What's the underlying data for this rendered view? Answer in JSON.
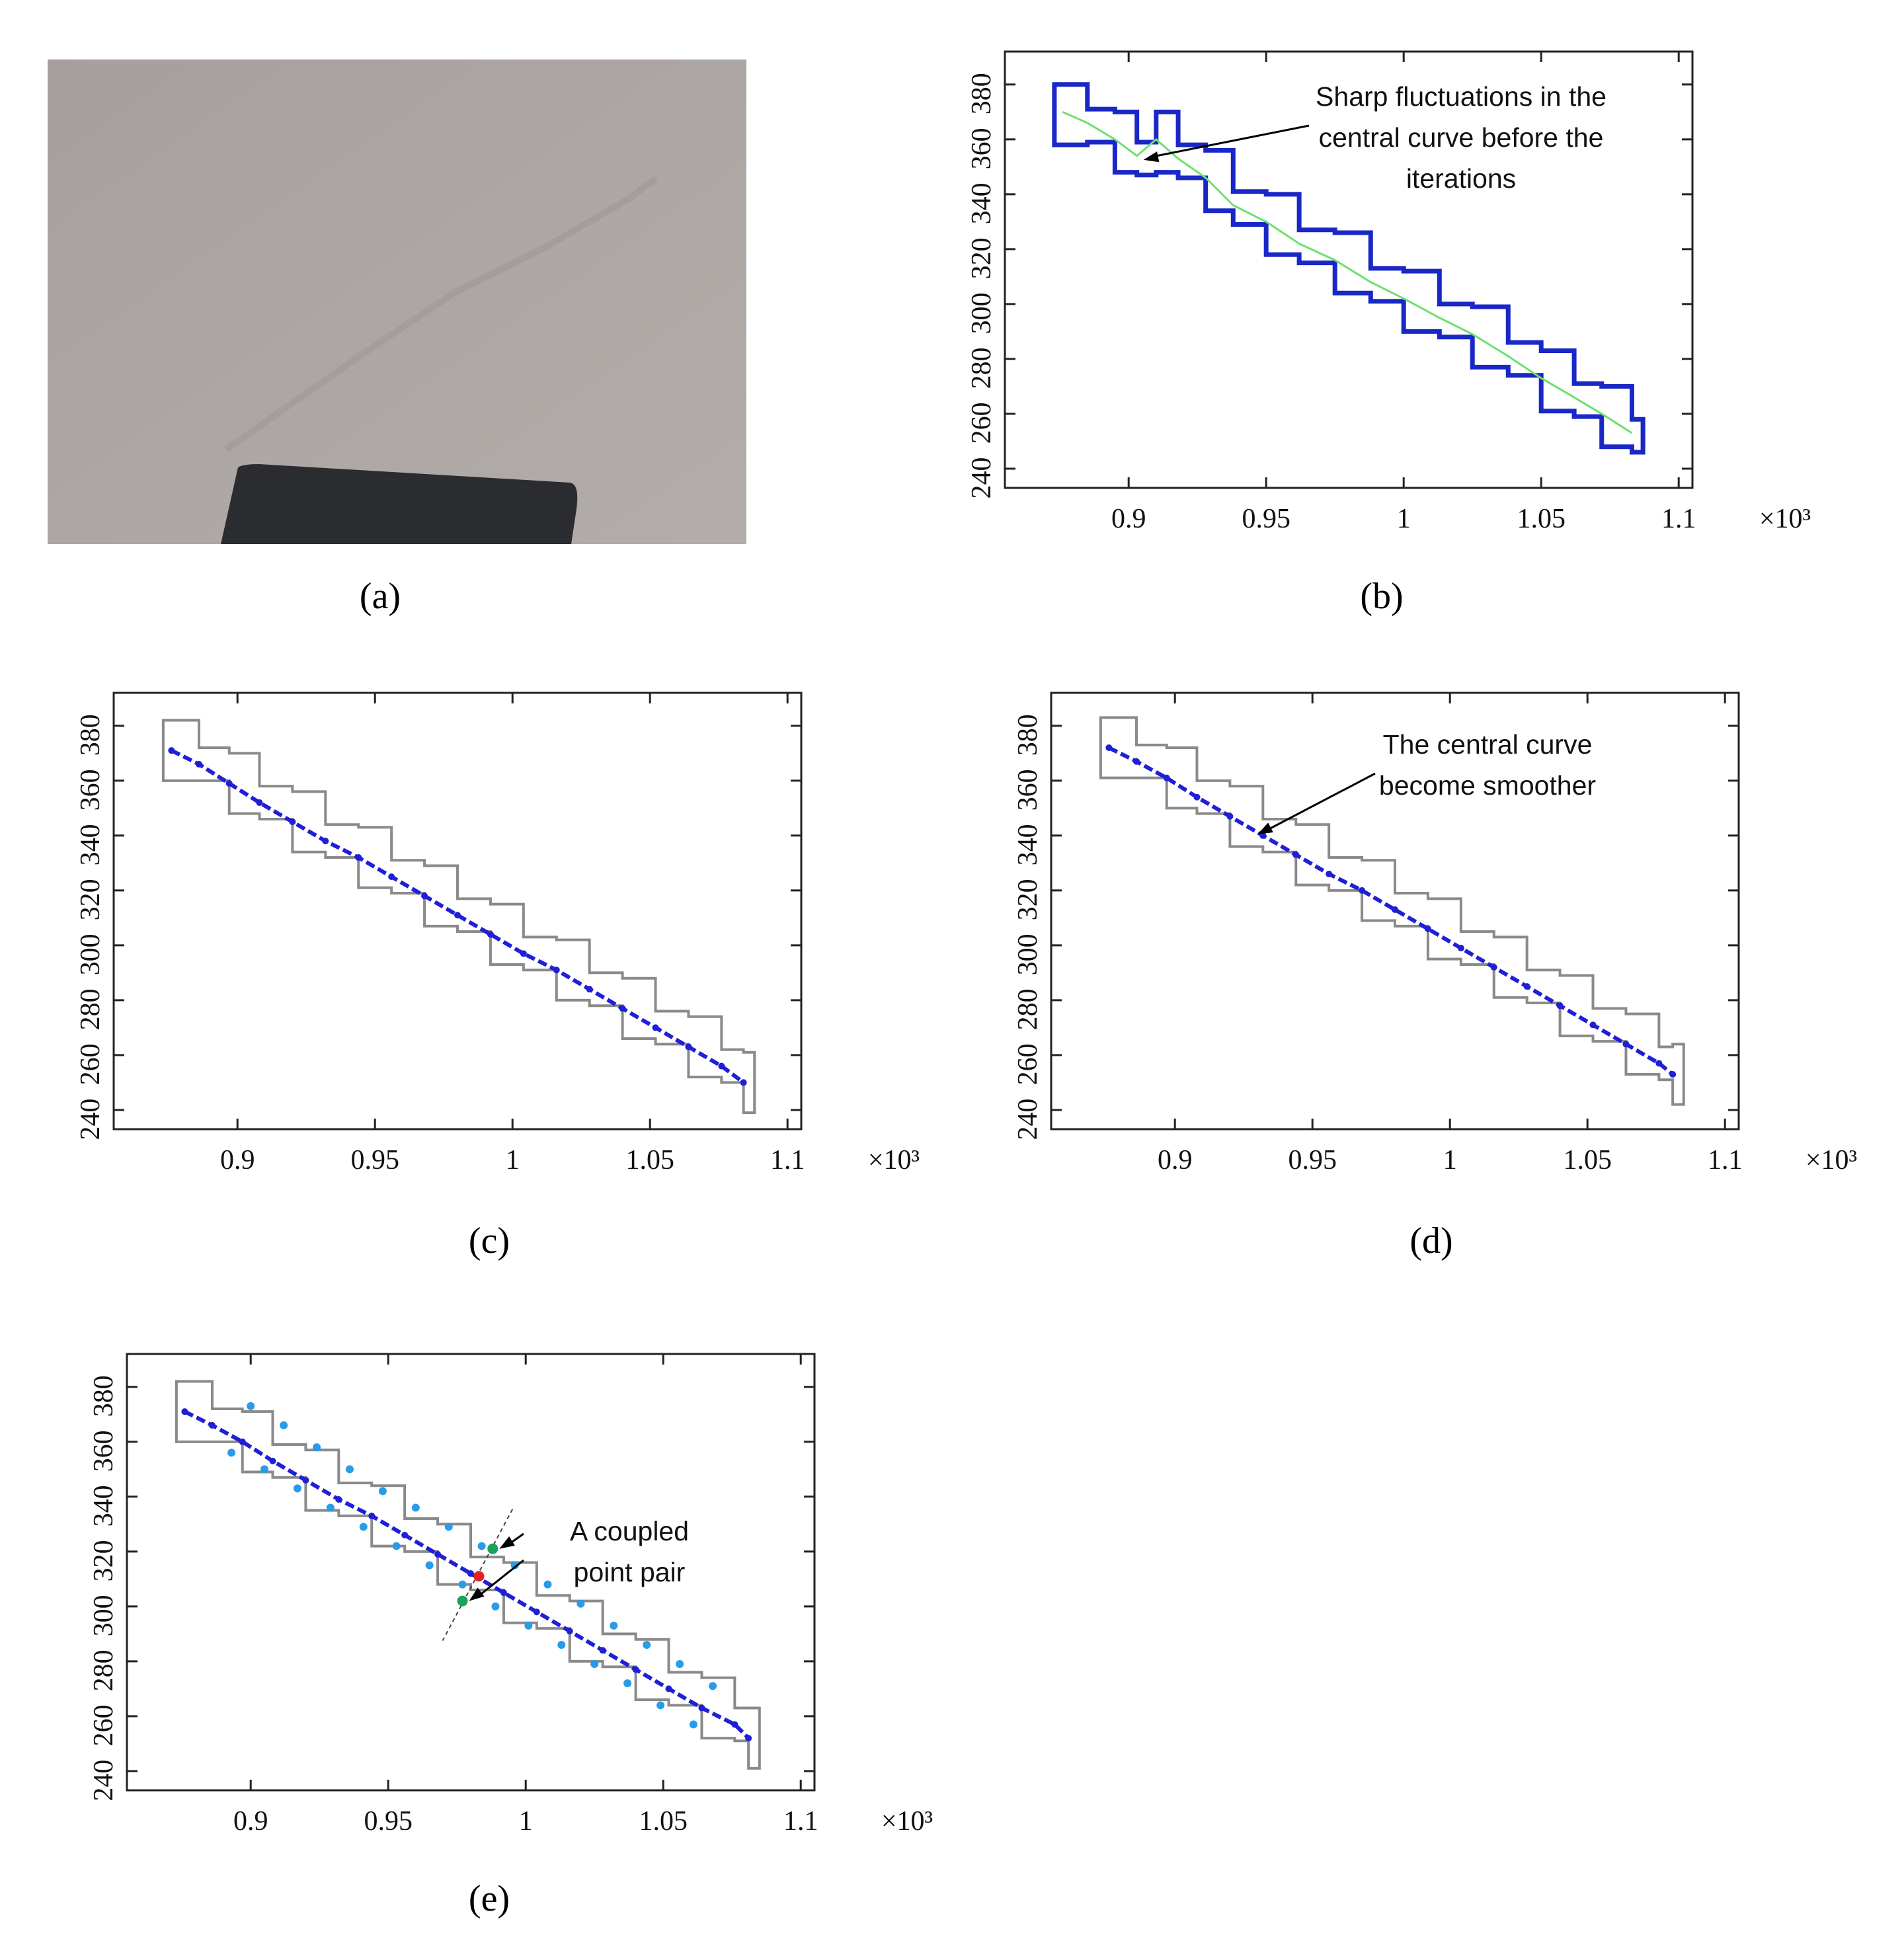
{
  "figure": {
    "captions": [
      "(a)",
      "(b)",
      "(c)",
      "(d)",
      "(e)"
    ]
  },
  "photo": {
    "description_icon": "photo-of-wall-crack",
    "colors": {
      "wall": "#a9a3a1",
      "object": "#2a2b2e",
      "edge": "#c08a70"
    }
  },
  "chart_data": [
    {
      "panel": "b",
      "type": "line",
      "title": "",
      "xlabel": "",
      "ylabel": "",
      "x_multiplier_label": "×10³",
      "xlim": [
        0.855,
        1.105
      ],
      "ylim": [
        233,
        392
      ],
      "xticks": [
        0.9,
        0.95,
        1,
        1.05,
        1.1
      ],
      "xtick_labels": [
        "0.9",
        "0.95",
        "1",
        "1.05",
        "1.1"
      ],
      "yticks": [
        240,
        260,
        280,
        300,
        320,
        340,
        360,
        380
      ],
      "ytick_labels": [
        "240",
        "260",
        "280",
        "300",
        "320",
        "340",
        "360",
        "380"
      ],
      "colors": {
        "boundary": "#1a27c7",
        "center": "#6ee06e"
      },
      "series": [
        {
          "name": "central curve",
          "kind": "line",
          "x": [
            0.876,
            0.885,
            0.895,
            0.903,
            0.91,
            0.918,
            0.928,
            0.938,
            0.95,
            0.962,
            0.975,
            0.988,
            1.0,
            1.013,
            1.025,
            1.038,
            1.05,
            1.062,
            1.072,
            1.083
          ],
          "y": [
            370,
            366,
            360,
            354,
            360,
            353,
            346,
            336,
            330,
            322,
            316,
            308,
            302,
            295,
            289,
            281,
            273,
            266,
            260,
            253
          ]
        }
      ],
      "annotation": {
        "text_lines": [
          "Sharp fluctuations in the",
          "central curve before the",
          "iterations"
        ]
      }
    },
    {
      "panel": "c",
      "type": "line",
      "x_multiplier_label": "×10³",
      "xlim": [
        0.855,
        1.105
      ],
      "ylim": [
        233,
        392
      ],
      "xticks": [
        0.9,
        0.95,
        1,
        1.05,
        1.1
      ],
      "xtick_labels": [
        "0.9",
        "0.95",
        "1",
        "1.05",
        "1.1"
      ],
      "yticks": [
        240,
        260,
        280,
        300,
        320,
        340,
        360,
        380
      ],
      "ytick_labels": [
        "240",
        "260",
        "280",
        "300",
        "320",
        "340",
        "360",
        "380"
      ],
      "colors": {
        "boundary": "#8a8a8a",
        "center": "#1f1fd8"
      },
      "series": [
        {
          "name": "central points",
          "kind": "dots",
          "x": [
            0.876,
            0.886,
            0.897,
            0.908,
            0.92,
            0.932,
            0.944,
            0.956,
            0.968,
            0.98,
            0.992,
            1.004,
            1.016,
            1.028,
            1.04,
            1.052,
            1.064,
            1.076,
            1.084
          ],
          "y": [
            371,
            366,
            359,
            352,
            345,
            338,
            332,
            325,
            318,
            311,
            304,
            297,
            291,
            284,
            277,
            270,
            263,
            256,
            250
          ]
        }
      ]
    },
    {
      "panel": "d",
      "type": "line",
      "x_multiplier_label": "×10³",
      "xlim": [
        0.855,
        1.105
      ],
      "ylim": [
        233,
        392
      ],
      "xticks": [
        0.9,
        0.95,
        1,
        1.05,
        1.1
      ],
      "xtick_labels": [
        "0.9",
        "0.95",
        "1",
        "1.05",
        "1.1"
      ],
      "yticks": [
        240,
        260,
        280,
        300,
        320,
        340,
        360,
        380
      ],
      "ytick_labels": [
        "240",
        "260",
        "280",
        "300",
        "320",
        "340",
        "360",
        "380"
      ],
      "colors": {
        "boundary": "#8a8a8a",
        "center": "#1f1fd8"
      },
      "series": [
        {
          "name": "smoothed central points",
          "kind": "dots",
          "x": [
            0.876,
            0.886,
            0.897,
            0.908,
            0.92,
            0.932,
            0.944,
            0.956,
            0.968,
            0.98,
            0.992,
            1.004,
            1.016,
            1.028,
            1.04,
            1.052,
            1.064,
            1.076,
            1.081
          ],
          "y": [
            372,
            367,
            361,
            354,
            347,
            340,
            333,
            326,
            320,
            313,
            306,
            299,
            292,
            285,
            278,
            271,
            264,
            257,
            253
          ]
        }
      ],
      "annotation": {
        "text_lines": [
          "The central curve",
          "become smoother"
        ]
      }
    },
    {
      "panel": "e",
      "type": "scatter",
      "x_multiplier_label": "×10³",
      "xlim": [
        0.855,
        1.105
      ],
      "ylim": [
        233,
        392
      ],
      "xticks": [
        0.9,
        0.95,
        1,
        1.05,
        1.1
      ],
      "xtick_labels": [
        "0.9",
        "0.95",
        "1",
        "1.05",
        "1.1"
      ],
      "yticks": [
        240,
        260,
        280,
        300,
        320,
        340,
        360,
        380
      ],
      "ytick_labels": [
        "240",
        "260",
        "280",
        "300",
        "320",
        "340",
        "360",
        "380"
      ],
      "colors": {
        "boundary": "#8a8a8a",
        "center": "#1f1fd8",
        "offset": "#2a9be8",
        "pair": "#1aa35a",
        "midpoint": "#e82020"
      },
      "series": [
        {
          "name": "central points",
          "kind": "dots",
          "x": [
            0.876,
            0.886,
            0.897,
            0.908,
            0.92,
            0.932,
            0.944,
            0.956,
            0.968,
            0.98,
            0.992,
            1.004,
            1.016,
            1.028,
            1.04,
            1.052,
            1.064,
            1.076,
            1.081
          ],
          "y": [
            371,
            366,
            360,
            353,
            346,
            339,
            333,
            326,
            319,
            312,
            305,
            298,
            291,
            284,
            277,
            270,
            263,
            257,
            252
          ]
        },
        {
          "name": "upper offset points",
          "kind": "dots",
          "x": [
            0.9,
            0.912,
            0.924,
            0.936,
            0.948,
            0.96,
            0.972,
            0.984,
            0.996,
            1.008,
            1.02,
            1.032,
            1.044,
            1.056,
            1.068
          ],
          "y": [
            373,
            366,
            358,
            350,
            342,
            336,
            329,
            322,
            315,
            308,
            301,
            293,
            286,
            279,
            271
          ]
        },
        {
          "name": "lower offset points",
          "kind": "dots",
          "x": [
            0.893,
            0.905,
            0.917,
            0.929,
            0.941,
            0.953,
            0.965,
            0.977,
            0.989,
            1.001,
            1.013,
            1.025,
            1.037,
            1.049,
            1.061
          ],
          "y": [
            356,
            350,
            343,
            336,
            329,
            322,
            315,
            308,
            300,
            293,
            286,
            279,
            272,
            264,
            257
          ]
        },
        {
          "name": "coupled point pair",
          "kind": "pair",
          "x": [
            0.988,
            0.977
          ],
          "y": [
            321,
            302
          ]
        },
        {
          "name": "midpoint",
          "kind": "midpoint",
          "x": [
            0.983
          ],
          "y": [
            311
          ]
        }
      ],
      "annotation": {
        "text_lines": [
          "A coupled",
          "point pair"
        ]
      }
    }
  ]
}
